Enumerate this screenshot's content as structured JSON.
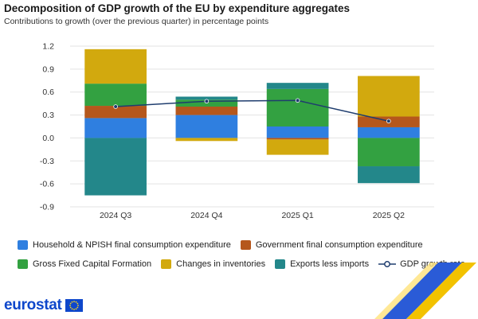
{
  "header": {
    "title": "Decomposition of GDP growth of the EU by expenditure aggregates",
    "subtitle": "Contributions to growth (over the previous quarter) in percentage points"
  },
  "brand": {
    "logo_text": "eurostat"
  },
  "chart_data": {
    "type": "bar",
    "stacked": true,
    "categories": [
      "2024 Q3",
      "2024 Q4",
      "2025 Q1",
      "2025 Q2"
    ],
    "ylim": [
      -0.9,
      1.2
    ],
    "yticks": [
      1.2,
      0.9,
      0.6,
      0.3,
      0.0,
      -0.3,
      -0.6,
      -0.9
    ],
    "ytick_labels": [
      "1.2",
      "0.9",
      "0.6",
      "0.3",
      "0.0",
      "-0.3",
      "-0.6",
      "-0.9"
    ],
    "grid": true,
    "legend_position": "bottom",
    "series": [
      {
        "name": "Household & NPISH final consumption expenditure",
        "color": "#2f7fe0",
        "values": [
          0.26,
          0.3,
          0.15,
          0.14
        ]
      },
      {
        "name": "Government final consumption expenditure",
        "color": "#b5571c",
        "values": [
          0.16,
          0.11,
          -0.02,
          0.14
        ]
      },
      {
        "name": "Gross Fixed Capital Formation",
        "color": "#33a141",
        "values": [
          0.29,
          0.09,
          0.49,
          -0.37
        ]
      },
      {
        "name": "Changes in inventories",
        "color": "#d2a90e",
        "values": [
          0.45,
          -0.04,
          -0.2,
          0.53
        ]
      },
      {
        "name": "Exports less imports",
        "color": "#23878a",
        "values": [
          -0.75,
          0.04,
          0.08,
          -0.22
        ]
      }
    ],
    "line": {
      "name": "GDP growth rate",
      "color": "#1f3d6e",
      "values": [
        0.41,
        0.48,
        0.49,
        0.22
      ]
    }
  }
}
